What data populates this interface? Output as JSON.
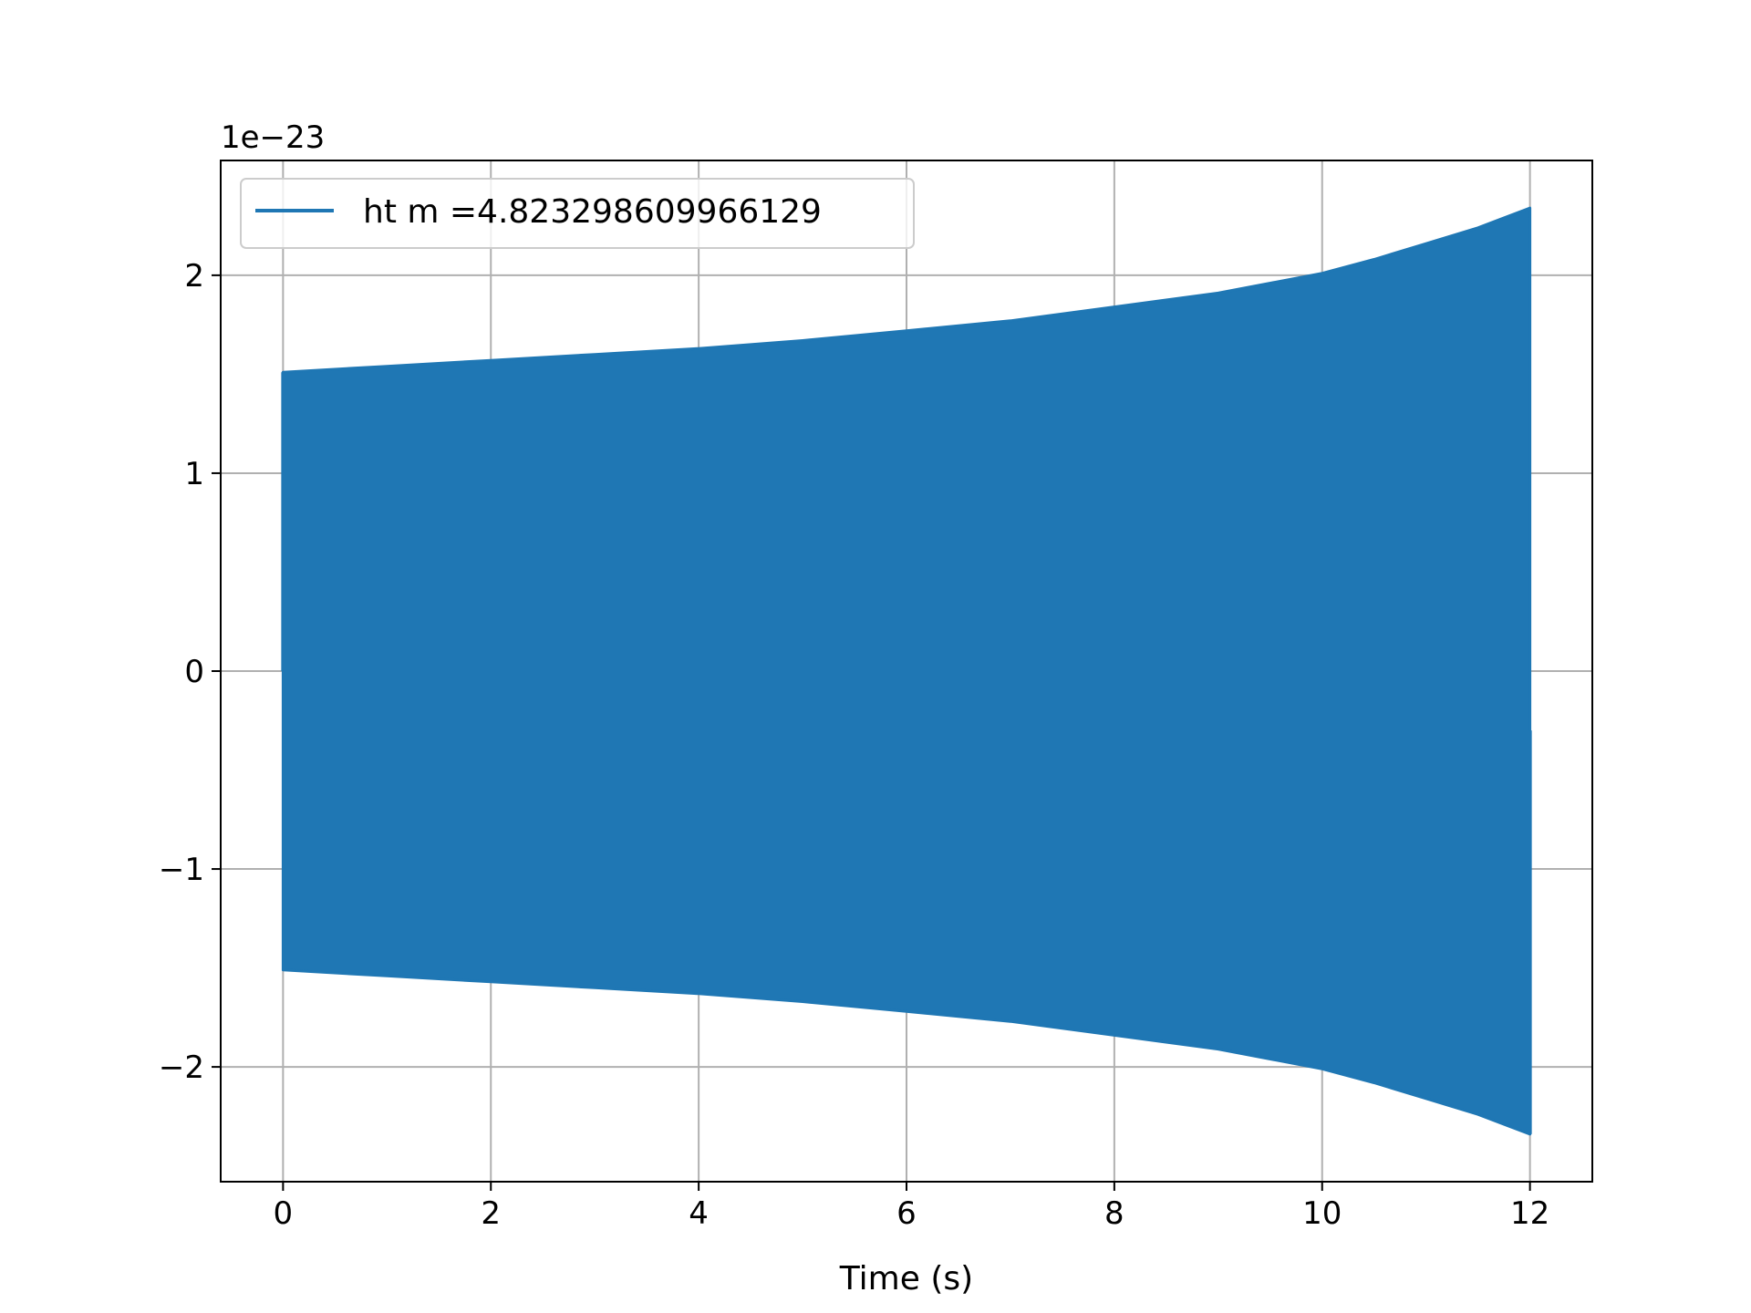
{
  "chart_data": {
    "type": "line",
    "title": "",
    "xlabel": "Time (s)",
    "ylabel": "",
    "offset_label": "1e−23",
    "xlim": [
      -0.6,
      12.6
    ],
    "ylim": [
      -2.58,
      2.58
    ],
    "x_ticks": [
      0,
      2,
      4,
      6,
      8,
      10,
      12
    ],
    "x_tick_labels": [
      "0",
      "2",
      "4",
      "6",
      "8",
      "10",
      "12"
    ],
    "y_ticks": [
      -2,
      -1,
      0,
      1,
      2
    ],
    "y_tick_labels": [
      "−2",
      "−1",
      "0",
      "1",
      "2"
    ],
    "grid": true,
    "legend_position": "top-left",
    "series": [
      {
        "name": "ht m =4.823298609966129",
        "color": "#1f77b4",
        "envelope": {
          "t": [
            0,
            1,
            2,
            3,
            4,
            5,
            6,
            7,
            8,
            9,
            10,
            10.5,
            11,
            11.5,
            12
          ],
          "amplitude": [
            1.51,
            1.54,
            1.57,
            1.6,
            1.63,
            1.67,
            1.72,
            1.77,
            1.84,
            1.91,
            2.01,
            2.08,
            2.16,
            2.24,
            2.34
          ]
        },
        "start": 0,
        "end": 12
      }
    ]
  }
}
